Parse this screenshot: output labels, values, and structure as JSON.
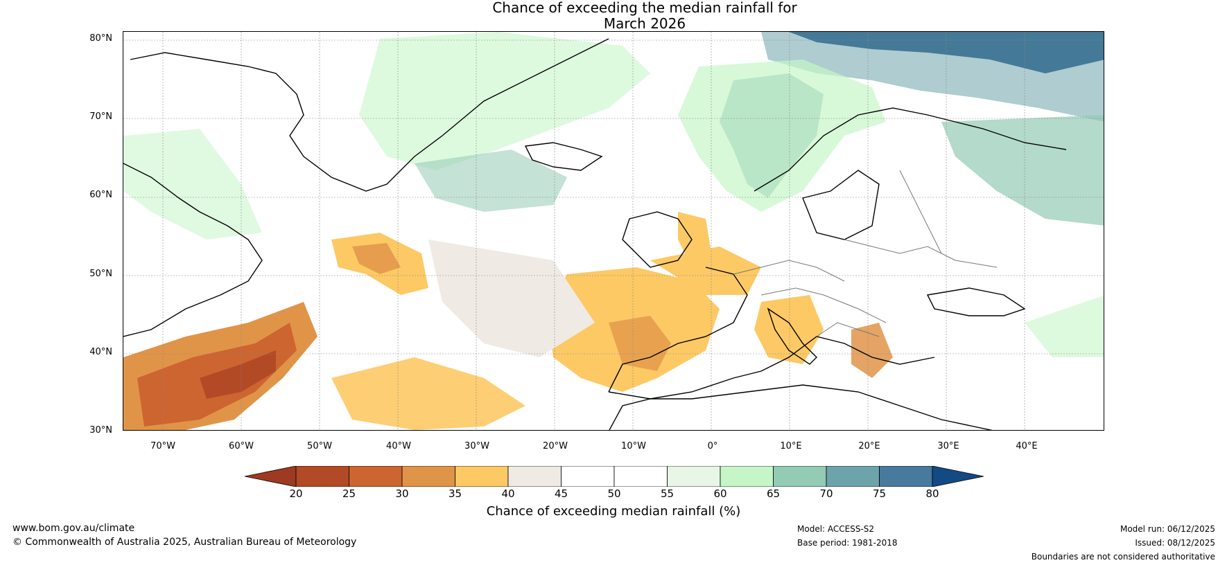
{
  "title_line1": "Chance of exceeding the median rainfall for",
  "title_line2": "March 2026",
  "latitude_labels": [
    "80°N",
    "70°N",
    "60°N",
    "50°N",
    "40°N",
    "30°N"
  ],
  "longitude_labels": [
    "70°W",
    "60°W",
    "50°W",
    "40°W",
    "30°W",
    "20°W",
    "10°W",
    "0°",
    "10°E",
    "20°E",
    "30°E",
    "40°E"
  ],
  "colorbar": {
    "label": "Chance of exceeding median rainfall (%)",
    "ticks": [
      "20",
      "25",
      "30",
      "35",
      "40",
      "45",
      "50",
      "55",
      "60",
      "65",
      "70",
      "75",
      "80"
    ],
    "colors": [
      "#9e3a1f",
      "#b24a26",
      "#cc6530",
      "#e09448",
      "#fdc965",
      "#efeae4",
      "#ffffff",
      "#ffffff",
      "#e8f6e8",
      "#c6f6c8",
      "#93cbb4",
      "#6da3aa",
      "#477a9c",
      "#134a84"
    ]
  },
  "footer": {
    "website": "www.bom.gov.au/climate",
    "copyright": "© Commonwealth of Australia 2025, Australian Bureau of Meteorology",
    "model": "Model: ACCESS-S2",
    "base_period": "Base period: 1981-2018",
    "model_run": "Model run: 06/12/2025",
    "issued": "Issued: 08/12/2025",
    "disclaimer": "Boundaries are not considered authoritative"
  }
}
